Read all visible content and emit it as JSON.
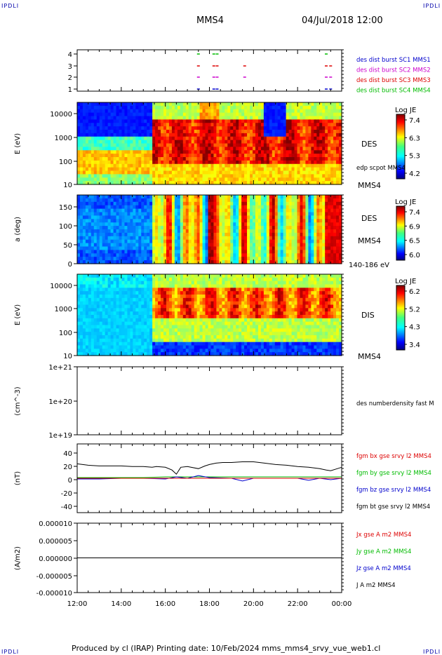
{
  "header": {
    "corner_tl": "IPDLI",
    "corner_tr": "IPDLI",
    "corner_bl": "IPDLI",
    "corner_br": "IPDLI",
    "spacecraft": "MMS4",
    "date": "04/Jul/2018 12:00"
  },
  "footer": {
    "text": "Produced by cl (IRAP)   Printing date: 10/Feb/2024   mms_mms4_srvy_vue_web1.cl"
  },
  "colors": {
    "mms1": "#0000cc",
    "mms2": "#cc00cc",
    "mms3": "#dd0000",
    "mms4": "#00bb00",
    "black": "#000000"
  },
  "time_axis": {
    "ticks": [
      "12:00",
      "14:00",
      "16:00",
      "18:00",
      "20:00",
      "22:00",
      "00:00"
    ]
  },
  "chart_data": [
    {
      "type": "scatter",
      "panel": "burst",
      "yticks": [
        "4",
        "3",
        "2",
        "1"
      ],
      "legend": [
        "des dist burst SC1 MMS1",
        "des dist burst SC2 MMS2",
        "des dist burst SC3 MMS3",
        "des dist burst SC4 MMS4"
      ],
      "series": [
        {
          "name": "des dist burst SC4 MMS4",
          "level": 4,
          "times": [
            17.5,
            18.2,
            18.35,
            23.3
          ]
        },
        {
          "name": "des dist burst SC3 MMS3",
          "level": 3,
          "times": [
            17.5,
            18.2,
            18.35,
            19.6,
            23.3,
            23.5
          ]
        },
        {
          "name": "des dist burst SC2 MMS2",
          "level": 2,
          "times": [
            17.5,
            18.2,
            18.35,
            19.6,
            23.3,
            23.5
          ]
        },
        {
          "name": "des dist burst SC1 MMS1",
          "level": 1,
          "times": [
            17.5,
            18.2,
            18.35,
            23.3,
            23.5
          ]
        }
      ]
    },
    {
      "type": "heatmap",
      "panel": "des-energy",
      "yticks": [
        "10000",
        "1000",
        "100",
        "10"
      ],
      "ylabel": "E (eV)",
      "label": "DES",
      "overlay": "edp scpot MMS4",
      "sublabel": "MMS4",
      "colorbar": {
        "title": "Log JE",
        "ticks": [
          "7.4",
          "6.3",
          "5.3",
          "4.2"
        ]
      }
    },
    {
      "type": "heatmap",
      "panel": "des-pitch",
      "yticks": [
        "150",
        "100",
        "50",
        "0"
      ],
      "ylabel": "a (deg)",
      "label": "DES",
      "sublabel": "MMS4",
      "energy_range": "140-186 eV",
      "colorbar": {
        "title": "Log JE",
        "ticks": [
          "7.4",
          "6.9",
          "6.5",
          "6.0"
        ]
      }
    },
    {
      "type": "heatmap",
      "panel": "dis-energy",
      "yticks": [
        "10000",
        "1000",
        "100",
        "10"
      ],
      "ylabel": "E (eV)",
      "label": "DIS",
      "sublabel": "MMS4",
      "colorbar": {
        "title": "Log JE",
        "ticks": [
          "6.2",
          "5.2",
          "4.3",
          "3.4"
        ]
      }
    },
    {
      "type": "line",
      "panel": "density",
      "yticks": [
        "1e+21",
        "1e+20",
        "1e+19"
      ],
      "ylabel": "(cm^-3)",
      "legend": [
        "des numberdensity fast M"
      ],
      "series": []
    },
    {
      "type": "line",
      "panel": "magnetic-field",
      "yticks": [
        "40",
        "20",
        "0",
        "-20",
        "-40"
      ],
      "ylim": [
        -50,
        50
      ],
      "ylabel": "(nT)",
      "legend": [
        "fgm bx gse srvy l2 MMS4",
        "fgm by gse srvy l2 MMS4",
        "fgm bz gse srvy l2 MMS4",
        "fgm bt gse srvy l2 MMS4"
      ],
      "series": [
        {
          "name": "fgm bt gse srvy l2 MMS4",
          "x": [
            12.0,
            12.5,
            13.0,
            13.5,
            14.0,
            14.5,
            15.0,
            15.4,
            15.6,
            16.0,
            16.3,
            16.5,
            16.7,
            17.0,
            17.5,
            17.8,
            18.0,
            18.3,
            18.6,
            19.0,
            19.5,
            20.0,
            20.5,
            21.0,
            21.5,
            22.0,
            22.5,
            23.0,
            23.3,
            23.5,
            23.8,
            24.0
          ],
          "y": [
            21,
            19,
            18,
            18,
            18,
            17,
            17,
            16,
            17,
            16,
            12,
            6,
            16,
            17,
            14,
            18,
            20,
            22,
            23,
            23,
            24,
            24,
            22,
            20,
            19,
            17,
            16,
            14,
            12,
            11,
            14,
            16
          ]
        },
        {
          "name": "fgm by gse srvy l2 MMS4",
          "x": [
            12.0,
            13.0,
            14.0,
            15.0,
            16.0,
            17.0,
            18.0,
            19.0,
            20.0,
            21.0,
            22.0,
            23.0,
            24.0
          ],
          "y": [
            1,
            1,
            1,
            1,
            2,
            2,
            2,
            2,
            2,
            2,
            2,
            2,
            2
          ]
        },
        {
          "name": "fgm bz gse srvy l2 MMS4",
          "x": [
            12.0,
            13.0,
            14.0,
            15.0,
            16.0,
            16.5,
            17.0,
            17.5,
            18.0,
            19.0,
            19.5,
            20.0,
            21.0,
            22.0,
            22.5,
            23.0,
            23.5,
            24.0
          ],
          "y": [
            -1,
            -1,
            0,
            0,
            -1,
            2,
            0,
            4,
            1,
            0,
            -4,
            0,
            0,
            0,
            -3,
            0,
            -2,
            0
          ]
        },
        {
          "name": "fgm bx gse srvy l2 MMS4",
          "x": [
            12.0,
            14.0,
            16.0,
            18.0,
            20.0,
            22.0,
            24.0
          ],
          "y": [
            0,
            0,
            0,
            0,
            0,
            0,
            0
          ]
        }
      ]
    },
    {
      "type": "line",
      "panel": "current",
      "yticks": [
        "0.000010",
        "0.000005",
        "0.000000",
        "-0.000005",
        "-0.000010"
      ],
      "ylim": [
        -1e-05,
        1e-05
      ],
      "ylabel": "(A/m2)",
      "legend": [
        "Jx gse A m2 MMS4",
        "Jy gse A m2 MMS4",
        "Jz gse A m2 MMS4",
        "J A m2 MMS4"
      ],
      "series": [
        {
          "name": "J A m2 MMS4",
          "x": [
            12.0,
            24.0
          ],
          "y": [
            0,
            0
          ]
        }
      ]
    }
  ]
}
